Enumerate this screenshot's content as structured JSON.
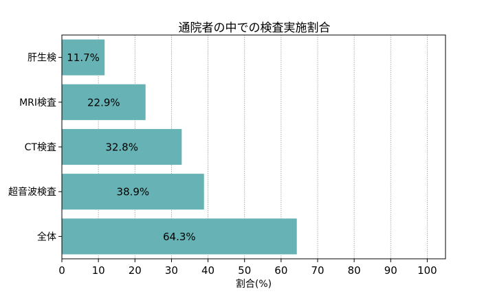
{
  "chart_data": {
    "type": "bar",
    "orientation": "horizontal",
    "title": "通院者の中での検査実施割合",
    "xlabel": "割合(%)",
    "ylabel": "",
    "categories": [
      "肝生検",
      "MRI検査",
      "CT検査",
      "超音波検査",
      "全体"
    ],
    "values": [
      11.7,
      22.9,
      32.8,
      38.9,
      64.3
    ],
    "data_labels": [
      "11.7%",
      "22.9%",
      "32.8%",
      "38.9%",
      "64.3%"
    ],
    "xlim": [
      0,
      105
    ],
    "xticks": [
      0,
      10,
      20,
      30,
      40,
      50,
      60,
      70,
      80,
      90,
      100
    ],
    "grid": "vertical dotted",
    "legend": "none",
    "bar_color": "#66b2b5"
  }
}
